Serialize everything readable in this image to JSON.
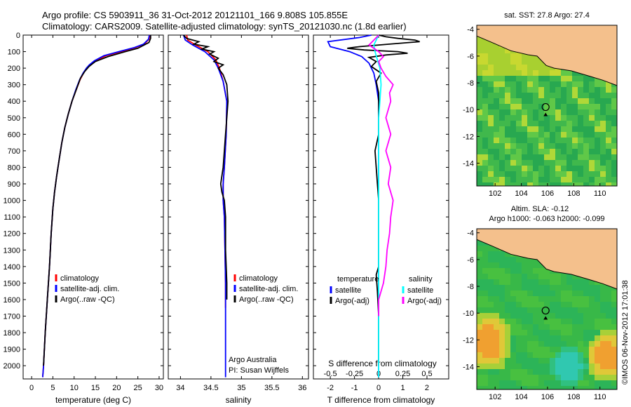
{
  "figure": {
    "title_line1": "Argo profile: CS 5903911_36 31-Oct-2012 20121101_166 9.808S 105.855E",
    "title_line2": "Climatology: CARS2009. Satellite-adjusted climatology: synTS_20121030.nc (1.8d earlier)",
    "credit": "©IMOS 06-Nov-2012 17:01:38"
  },
  "chart_data": [
    {
      "type": "line",
      "id": "temperature",
      "xlabel": "temperature (deg C)",
      "ylabel": "",
      "xlim": [
        -2,
        31
      ],
      "ylim": [
        2080,
        0
      ],
      "xticks": [
        0,
        5,
        10,
        15,
        20,
        25,
        30
      ],
      "yticks": [
        0,
        100,
        200,
        300,
        400,
        500,
        600,
        700,
        800,
        900,
        1000,
        1100,
        1200,
        1300,
        1400,
        1500,
        1600,
        1700,
        1800,
        1900,
        2000
      ],
      "legend": [
        "climatology",
        "satellite-adj. clim.",
        "Argo(..raw -QC)"
      ],
      "series": [
        {
          "name": "climatology",
          "color": "#ff0000",
          "points": [
            [
              27.9,
              0
            ],
            [
              27.6,
              25
            ],
            [
              26.5,
              55
            ],
            [
              24.5,
              75
            ],
            [
              21,
              100
            ],
            [
              17.5,
              125
            ],
            [
              15,
              155
            ],
            [
              13.8,
              180
            ],
            [
              13,
              200
            ],
            [
              12.2,
              230
            ],
            [
              11.4,
              270
            ],
            [
              10.5,
              330
            ],
            [
              9.5,
              400
            ],
            [
              8.6,
              480
            ],
            [
              7.8,
              560
            ],
            [
              7.1,
              650
            ],
            [
              6.5,
              750
            ],
            [
              5.9,
              850
            ],
            [
              5.4,
              950
            ],
            [
              5,
              1050
            ],
            [
              4.6,
              1200
            ],
            [
              4.2,
              1400
            ],
            [
              3.7,
              1600
            ],
            [
              3.2,
              1800
            ],
            [
              2.8,
              2000
            ],
            [
              2.6,
              2070
            ]
          ]
        },
        {
          "name": "satellite-adj. clim.",
          "color": "#0000ff",
          "points": [
            [
              27.7,
              0
            ],
            [
              27.5,
              25
            ],
            [
              26.3,
              55
            ],
            [
              24.2,
              75
            ],
            [
              20.5,
              100
            ],
            [
              17,
              125
            ],
            [
              14.8,
              155
            ],
            [
              13.6,
              180
            ],
            [
              12.9,
              200
            ],
            [
              12.1,
              230
            ],
            [
              11.3,
              270
            ],
            [
              10.4,
              330
            ],
            [
              9.5,
              400
            ],
            [
              8.6,
              480
            ],
            [
              7.8,
              560
            ],
            [
              7.1,
              650
            ],
            [
              6.5,
              750
            ],
            [
              5.9,
              850
            ],
            [
              5.4,
              950
            ],
            [
              5,
              1050
            ],
            [
              4.6,
              1200
            ],
            [
              4.2,
              1400
            ],
            [
              3.7,
              1600
            ],
            [
              3.2,
              1800
            ],
            [
              2.8,
              2000
            ],
            [
              2.6,
              2070
            ]
          ]
        },
        {
          "name": "Argo(..raw -QC)",
          "color": "#000000",
          "points": [
            [
              28,
              0
            ],
            [
              28,
              20
            ],
            [
              27.6,
              45
            ],
            [
              25,
              80
            ],
            [
              22,
              100
            ],
            [
              18,
              130
            ],
            [
              15,
              160
            ],
            [
              13.5,
              190
            ],
            [
              12.5,
              220
            ],
            [
              11.5,
              260
            ],
            [
              10.5,
              330
            ],
            [
              9.5,
              400
            ],
            [
              8.6,
              480
            ],
            [
              7.8,
              560
            ],
            [
              7.1,
              650
            ],
            [
              6.5,
              750
            ],
            [
              5.9,
              850
            ],
            [
              5.4,
              950
            ],
            [
              5,
              1050
            ],
            [
              4.6,
              1200
            ],
            [
              4.2,
              1400
            ],
            [
              3.7,
              1600
            ],
            [
              3.2,
              1800
            ],
            [
              2.8,
              2000
            ]
          ]
        }
      ]
    },
    {
      "type": "line",
      "id": "salinity",
      "xlabel": "salinity",
      "xlim": [
        33.8,
        36.1
      ],
      "ylim": [
        2080,
        0
      ],
      "xticks": [
        34,
        34.5,
        35,
        35.5,
        36
      ],
      "legend": [
        "climatology",
        "satellite-adj. clim.",
        "Argo(..raw -QC)"
      ],
      "annotation": [
        "Argo Australia",
        "PI: Susan Wijffels"
      ],
      "series": [
        {
          "name": "climatology",
          "color": "#ff0000",
          "points": [
            [
              34.1,
              0
            ],
            [
              34.12,
              30
            ],
            [
              34.25,
              60
            ],
            [
              34.45,
              100
            ],
            [
              34.58,
              150
            ],
            [
              34.64,
              200
            ],
            [
              34.7,
              280
            ],
            [
              34.76,
              400
            ],
            [
              34.75,
              600
            ],
            [
              34.72,
              800
            ],
            [
              34.7,
              900
            ],
            [
              34.7,
              1000
            ],
            [
              34.72,
              1100
            ],
            [
              34.73,
              1300
            ],
            [
              34.74,
              1500
            ],
            [
              34.74,
              1650
            ]
          ]
        },
        {
          "name": "satellite-adj. clim.",
          "color": "#0000ff",
          "points": [
            [
              34.05,
              0
            ],
            [
              34.08,
              30
            ],
            [
              34.2,
              60
            ],
            [
              34.4,
              100
            ],
            [
              34.55,
              150
            ],
            [
              34.62,
              200
            ],
            [
              34.7,
              280
            ],
            [
              34.76,
              400
            ],
            [
              34.75,
              600
            ],
            [
              34.72,
              800
            ],
            [
              34.7,
              900
            ],
            [
              34.7,
              1000
            ],
            [
              34.72,
              1100
            ],
            [
              34.73,
              1300
            ],
            [
              34.74,
              1500
            ],
            [
              34.74,
              1900
            ],
            [
              34.74,
              2070
            ]
          ]
        },
        {
          "name": "Argo(..raw -QC)",
          "color": "#000000",
          "points": [
            [
              34.05,
              0
            ],
            [
              34.1,
              20
            ],
            [
              34.3,
              40
            ],
            [
              34.22,
              55
            ],
            [
              34.45,
              70
            ],
            [
              34.35,
              85
            ],
            [
              34.55,
              100
            ],
            [
              34.48,
              115
            ],
            [
              34.62,
              140
            ],
            [
              34.55,
              160
            ],
            [
              34.7,
              180
            ],
            [
              34.62,
              200
            ],
            [
              34.7,
              240
            ],
            [
              34.76,
              300
            ],
            [
              34.78,
              400
            ],
            [
              34.76,
              500
            ],
            [
              34.74,
              600
            ],
            [
              34.72,
              700
            ],
            [
              34.7,
              800
            ],
            [
              34.66,
              900
            ],
            [
              34.68,
              950
            ],
            [
              34.72,
              1000
            ],
            [
              34.74,
              1100
            ],
            [
              34.74,
              1300
            ],
            [
              34.76,
              1500
            ],
            [
              34.76,
              1600
            ]
          ]
        }
      ]
    },
    {
      "type": "line",
      "id": "difference",
      "xlabel": "T difference from climatology",
      "xlabel_top": "S difference from climatology",
      "xlim": [
        -2.7,
        2.9
      ],
      "ylim": [
        2080,
        0
      ],
      "xticks": [
        -2,
        -1,
        0,
        1,
        2
      ],
      "xticks_top": [
        -0.5,
        -0.25,
        0,
        0.25,
        0.5
      ],
      "xticks_top_labels": [
        "-0.5",
        "-0.25",
        "0",
        "0.25",
        "0.5"
      ],
      "legend_left_title": "temperature",
      "legend_left": [
        "satellite",
        "Argo(-adj)"
      ],
      "legend_right_title": "salinity",
      "legend_right": [
        "satellite",
        "Argo(-adj)"
      ],
      "series": [
        {
          "name": "temperature satellite",
          "color": "#0000ff",
          "points": [
            [
              -0.3,
              0
            ],
            [
              -0.8,
              15
            ],
            [
              -2.1,
              40
            ],
            [
              -2,
              70
            ],
            [
              -1.2,
              100
            ],
            [
              -0.7,
              130
            ],
            [
              -0.4,
              170
            ],
            [
              -0.2,
              230
            ],
            [
              -0.1,
              300
            ],
            [
              0,
              400
            ],
            [
              0,
              1000
            ],
            [
              0,
              2070
            ]
          ]
        },
        {
          "name": "temperature Argo(-adj)",
          "color": "#000000",
          "points": [
            [
              0,
              0
            ],
            [
              0.3,
              10
            ],
            [
              0.8,
              20
            ],
            [
              1.5,
              30
            ],
            [
              1.7,
              40
            ],
            [
              0.4,
              55
            ],
            [
              -0.8,
              70
            ],
            [
              -1.3,
              80
            ],
            [
              -0.6,
              90
            ],
            [
              0.8,
              100
            ],
            [
              1.2,
              110
            ],
            [
              0.3,
              120
            ],
            [
              -0.4,
              135
            ],
            [
              -0.1,
              160
            ],
            [
              -0.3,
              190
            ],
            [
              0.1,
              230
            ],
            [
              -0.1,
              280
            ],
            [
              0,
              350
            ],
            [
              0,
              600
            ],
            [
              -0.15,
              700
            ],
            [
              -0.1,
              800
            ],
            [
              -0.05,
              900
            ],
            [
              0,
              1000
            ],
            [
              0,
              1400
            ],
            [
              -0.1,
              1450
            ],
            [
              -0.05,
              1550
            ],
            [
              0,
              1700
            ],
            [
              0,
              2000
            ]
          ]
        },
        {
          "name": "salinity satellite",
          "color": "#00ffff",
          "points": [
            [
              0,
              0
            ],
            [
              -0.1,
              30
            ],
            [
              -0.2,
              60
            ],
            [
              -0.15,
              100
            ],
            [
              -0.05,
              150
            ],
            [
              0.05,
              200
            ],
            [
              0.1,
              300
            ],
            [
              0.05,
              400
            ],
            [
              0,
              500
            ],
            [
              0,
              1000
            ],
            [
              0,
              2070
            ]
          ]
        },
        {
          "name": "salinity Argo(-adj)",
          "color": "#ff00ff",
          "points": [
            [
              0,
              0
            ],
            [
              -0.2,
              30
            ],
            [
              -0.4,
              60
            ],
            [
              -0.2,
              80
            ],
            [
              0,
              100
            ],
            [
              0.2,
              130
            ],
            [
              0,
              160
            ],
            [
              0.1,
              200
            ],
            [
              0.3,
              250
            ],
            [
              0.6,
              300
            ],
            [
              0.45,
              350
            ],
            [
              0.5,
              400
            ],
            [
              0.3,
              500
            ],
            [
              0.5,
              600
            ],
            [
              0.3,
              700
            ],
            [
              0.5,
              800
            ],
            [
              0.4,
              900
            ],
            [
              0.6,
              1000
            ],
            [
              0.5,
              1100
            ],
            [
              0.45,
              1200
            ],
            [
              0.35,
              1300
            ],
            [
              0.3,
              1400
            ],
            [
              0.2,
              1500
            ],
            [
              0.1,
              1550
            ],
            [
              0,
              1600
            ],
            [
              0,
              1700
            ]
          ]
        }
      ]
    },
    {
      "type": "heatmap",
      "id": "sst_map",
      "title": "sat. SST: 27.8 Argo: 27.4",
      "xticks": [
        102,
        104,
        106,
        108,
        110
      ],
      "yticks": [
        -4,
        -6,
        -8,
        -10,
        -12,
        -14
      ],
      "xlim": [
        100.6,
        111.3
      ],
      "ylim": [
        -15.7,
        -3.7
      ],
      "argo_position": [
        105.855,
        -9.808
      ]
    },
    {
      "type": "heatmap",
      "id": "sla_map",
      "title_line1": "Altim. SLA: -0.12",
      "title_line2": "Argo h1000: -0.063 h2000: -0.099",
      "xticks": [
        102,
        104,
        106,
        108,
        110
      ],
      "yticks": [
        -4,
        -6,
        -8,
        -10,
        -12,
        -14
      ],
      "xlim": [
        100.6,
        111.3
      ],
      "ylim": [
        -15.7,
        -3.7
      ],
      "argo_position": [
        105.855,
        -9.808
      ]
    }
  ]
}
